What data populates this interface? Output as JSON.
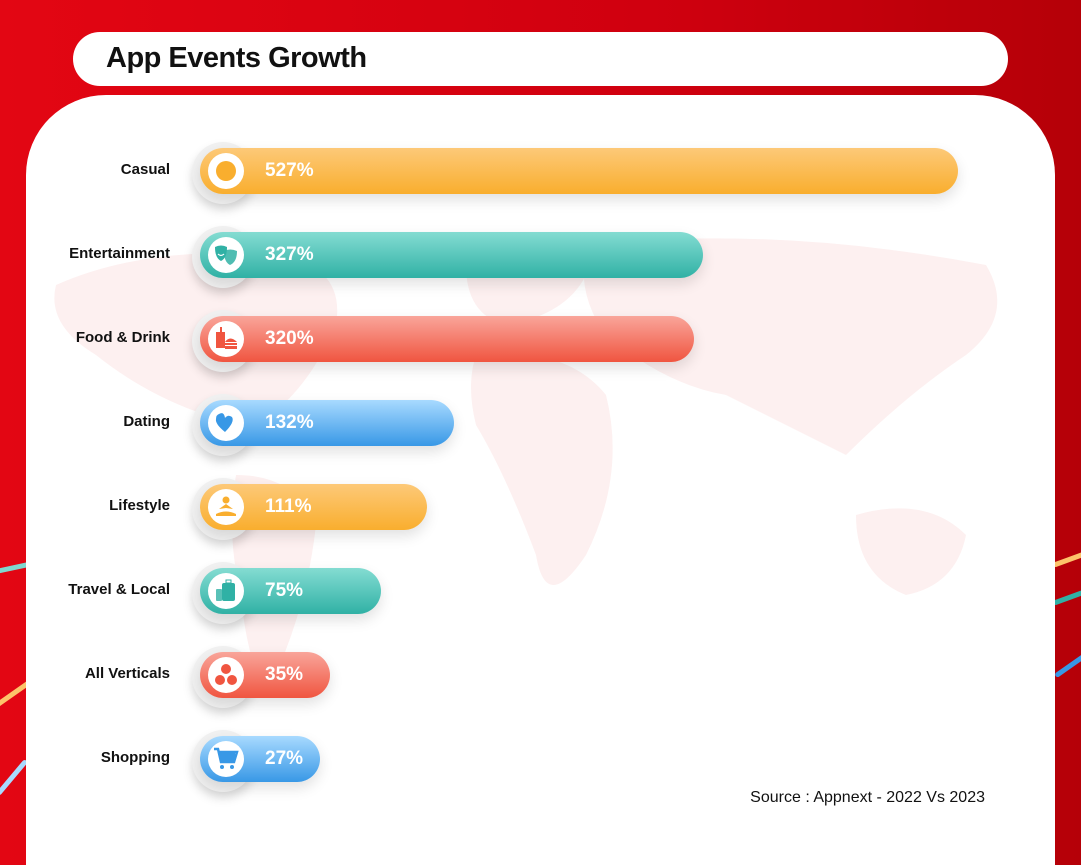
{
  "title": "App Events Growth",
  "source": "Source : Appnext - 2022 Vs 2023",
  "colors": {
    "orange": [
      "#fdc978",
      "#f9ae2e"
    ],
    "teal": [
      "#84dcd2",
      "#30b1a5"
    ],
    "red": [
      "#f9a59a",
      "#f05540"
    ],
    "blue": [
      "#a8daff",
      "#3898e6"
    ]
  },
  "chart_data": {
    "type": "bar",
    "orientation": "horizontal",
    "title": "App Events Growth",
    "categories": [
      "Casual",
      "Entertainment",
      "Food & Drink",
      "Dating",
      "Lifestyle",
      "Travel & Local",
      "All Verticals",
      "Shopping"
    ],
    "values": [
      527,
      327,
      320,
      132,
      111,
      75,
      35,
      27
    ],
    "labels": [
      "527%",
      "327%",
      "320%",
      "132%",
      "111%",
      "75%",
      "35%",
      "27%"
    ],
    "unit": "%",
    "bar_colors": [
      "orange",
      "teal",
      "red",
      "blue",
      "orange",
      "teal",
      "red",
      "blue"
    ],
    "icons": [
      "circle-icon",
      "theater-masks-icon",
      "fast-food-icon",
      "hearts-icon",
      "meditation-icon",
      "luggage-icon",
      "dots-icon",
      "shopping-cart-icon"
    ],
    "grid": false,
    "legend": "none"
  }
}
